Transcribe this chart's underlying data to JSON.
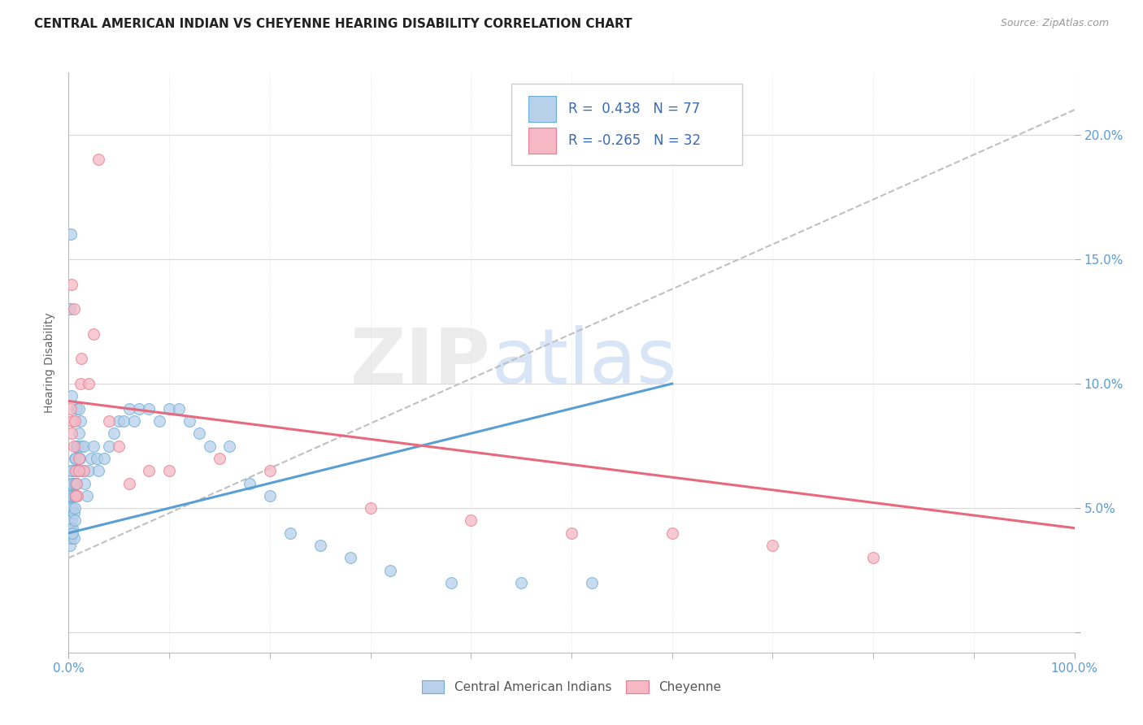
{
  "title": "CENTRAL AMERICAN INDIAN VS CHEYENNE HEARING DISABILITY CORRELATION CHART",
  "source": "Source: ZipAtlas.com",
  "ylabel": "Hearing Disability",
  "xlim": [
    0.0,
    1.0
  ],
  "ylim": [
    -0.008,
    0.225
  ],
  "blue_fill": "#b8d0ea",
  "blue_edge": "#6aaed6",
  "pink_fill": "#f5b8c4",
  "pink_edge": "#e87d90",
  "blue_line": "#5a9fd4",
  "pink_line": "#e8697d",
  "dash_color": "#c0c0c0",
  "grid_color": "#d8d8d8",
  "tick_color": "#5b9bd5",
  "ylabel_color": "#666666",
  "title_color": "#222222",
  "source_color": "#999999",
  "legend_text_color": "#3a6bb5",
  "blue_scatter_x": [
    0.001,
    0.001,
    0.001,
    0.001,
    0.001,
    0.002,
    0.002,
    0.002,
    0.002,
    0.002,
    0.003,
    0.003,
    0.003,
    0.003,
    0.004,
    0.004,
    0.004,
    0.005,
    0.005,
    0.005,
    0.005,
    0.006,
    0.006,
    0.006,
    0.007,
    0.007,
    0.008,
    0.008,
    0.008,
    0.009,
    0.009,
    0.01,
    0.01,
    0.01,
    0.011,
    0.012,
    0.013,
    0.015,
    0.015,
    0.016,
    0.018,
    0.02,
    0.022,
    0.025,
    0.028,
    0.03,
    0.035,
    0.04,
    0.045,
    0.05,
    0.055,
    0.06,
    0.065,
    0.07,
    0.08,
    0.09,
    0.1,
    0.11,
    0.12,
    0.13,
    0.14,
    0.16,
    0.18,
    0.2,
    0.22,
    0.25,
    0.28,
    0.32,
    0.38,
    0.45,
    0.52,
    0.001,
    0.002,
    0.003,
    0.003,
    0.004,
    0.006
  ],
  "blue_scatter_y": [
    0.035,
    0.04,
    0.045,
    0.05,
    0.055,
    0.038,
    0.042,
    0.048,
    0.055,
    0.06,
    0.04,
    0.045,
    0.055,
    0.065,
    0.042,
    0.05,
    0.06,
    0.038,
    0.048,
    0.055,
    0.065,
    0.05,
    0.06,
    0.07,
    0.055,
    0.07,
    0.06,
    0.075,
    0.09,
    0.065,
    0.075,
    0.08,
    0.09,
    0.065,
    0.07,
    0.085,
    0.075,
    0.065,
    0.075,
    0.06,
    0.055,
    0.065,
    0.07,
    0.075,
    0.07,
    0.065,
    0.07,
    0.075,
    0.08,
    0.085,
    0.085,
    0.09,
    0.085,
    0.09,
    0.09,
    0.085,
    0.09,
    0.09,
    0.085,
    0.08,
    0.075,
    0.075,
    0.06,
    0.055,
    0.04,
    0.035,
    0.03,
    0.025,
    0.02,
    0.02,
    0.02,
    0.13,
    0.16,
    0.065,
    0.095,
    0.04,
    0.045
  ],
  "pink_scatter_x": [
    0.002,
    0.003,
    0.004,
    0.005,
    0.006,
    0.007,
    0.008,
    0.009,
    0.01,
    0.012,
    0.013,
    0.015,
    0.02,
    0.025,
    0.03,
    0.04,
    0.05,
    0.06,
    0.08,
    0.1,
    0.15,
    0.2,
    0.3,
    0.4,
    0.5,
    0.6,
    0.7,
    0.8,
    0.003,
    0.005,
    0.007,
    0.01
  ],
  "pink_scatter_y": [
    0.09,
    0.14,
    0.085,
    0.13,
    0.085,
    0.065,
    0.06,
    0.055,
    0.07,
    0.1,
    0.11,
    0.065,
    0.1,
    0.12,
    0.19,
    0.085,
    0.075,
    0.06,
    0.065,
    0.065,
    0.07,
    0.065,
    0.05,
    0.045,
    0.04,
    0.04,
    0.035,
    0.03,
    0.08,
    0.075,
    0.055,
    0.065
  ],
  "blue_trend": [
    0.0,
    0.6,
    0.04,
    0.1
  ],
  "pink_trend": [
    0.0,
    1.0,
    0.093,
    0.042
  ],
  "dashed_trend": [
    0.0,
    1.0,
    0.03,
    0.21
  ],
  "y_ticks": [
    0.0,
    0.05,
    0.1,
    0.15,
    0.2
  ],
  "y_tick_labels": [
    "",
    "5.0%",
    "10.0%",
    "15.0%",
    "20.0%"
  ],
  "x_tick_left": "0.0%",
  "x_tick_right": "100.0%",
  "legend_label1": "Central American Indians",
  "legend_label2": "Cheyenne",
  "scatter_size": 100,
  "scatter_alpha": 0.75,
  "scatter_lw": 0.8
}
